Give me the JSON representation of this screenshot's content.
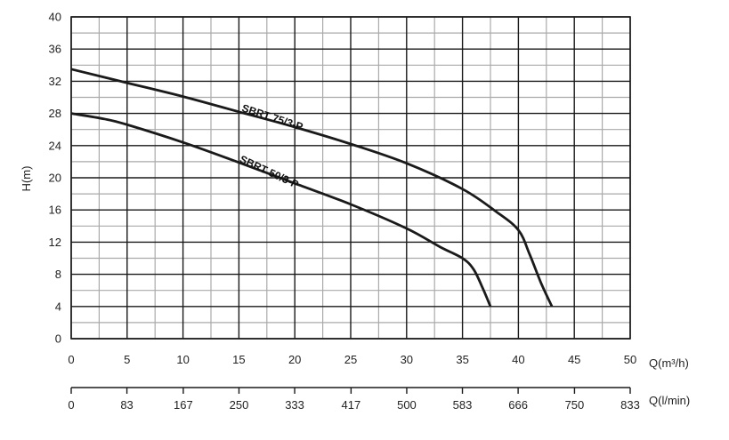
{
  "chart_data": {
    "type": "line",
    "ylabel": "H(m)",
    "xlabel": "Q(m³/h)",
    "xlabel_secondary": "Q(l/min)",
    "xlim": [
      0,
      50
    ],
    "ylim": [
      0,
      40
    ],
    "x_ticks": [
      0,
      5,
      10,
      15,
      20,
      25,
      30,
      35,
      40,
      45,
      50
    ],
    "y_ticks": [
      0,
      4,
      8,
      12,
      16,
      20,
      24,
      28,
      32,
      36,
      40
    ],
    "x_ticks_secondary": [
      {
        "value": 0,
        "label": "0"
      },
      {
        "value": 83,
        "label": "83"
      },
      {
        "value": 167,
        "label": "167"
      },
      {
        "value": 250,
        "label": "250"
      },
      {
        "value": 333,
        "label": "333"
      },
      {
        "value": 417,
        "label": "417"
      },
      {
        "value": 500,
        "label": "500"
      },
      {
        "value": 583,
        "label": "583"
      },
      {
        "value": 666,
        "label": "666"
      },
      {
        "value": 750,
        "label": "750"
      },
      {
        "value": 833,
        "label": "833"
      }
    ],
    "grid": true,
    "grid_color": "#aaaaaa",
    "line_color": "#1a1a1a",
    "series": [
      {
        "name": "SBRT 75/3-P",
        "x": [
          0,
          5,
          10,
          15,
          20,
          25,
          30,
          35,
          38,
          40,
          41,
          42,
          43
        ],
        "y": [
          33.5,
          31.8,
          30.1,
          28.2,
          26.3,
          24.2,
          21.8,
          18.6,
          15.8,
          13.5,
          10.5,
          7.0,
          4.0
        ]
      },
      {
        "name": "SBRT 50/3-P",
        "x": [
          0,
          3,
          5,
          10,
          15,
          20,
          25,
          30,
          33,
          35,
          36,
          36.8,
          37.5
        ],
        "y": [
          28.0,
          27.3,
          26.6,
          24.4,
          21.9,
          19.3,
          16.7,
          13.7,
          11.4,
          10.0,
          8.6,
          6.3,
          4.0
        ]
      }
    ]
  }
}
